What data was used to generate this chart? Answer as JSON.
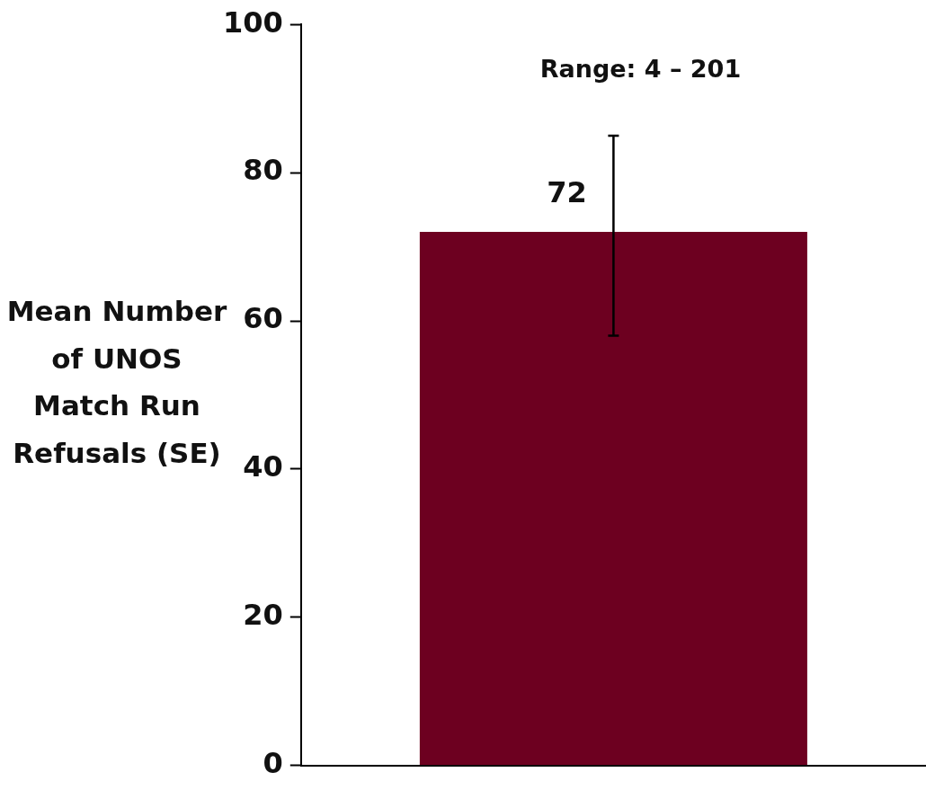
{
  "chart_data": {
    "type": "bar",
    "ylabel": "Mean Number of UNOS Match Run Refusals (SE)",
    "categories": [
      null
    ],
    "series": [
      {
        "color": "#6d0020",
        "values": [
          72
        ],
        "errors": [
          [
            58,
            85
          ]
        ]
      }
    ],
    "data_labels": true,
    "annotations": [
      "Range: 4 – 201"
    ],
    "ylim": [
      0,
      100
    ],
    "yticks": [
      0,
      20,
      40,
      60,
      80,
      100
    ],
    "grid": false,
    "legend": false
  }
}
